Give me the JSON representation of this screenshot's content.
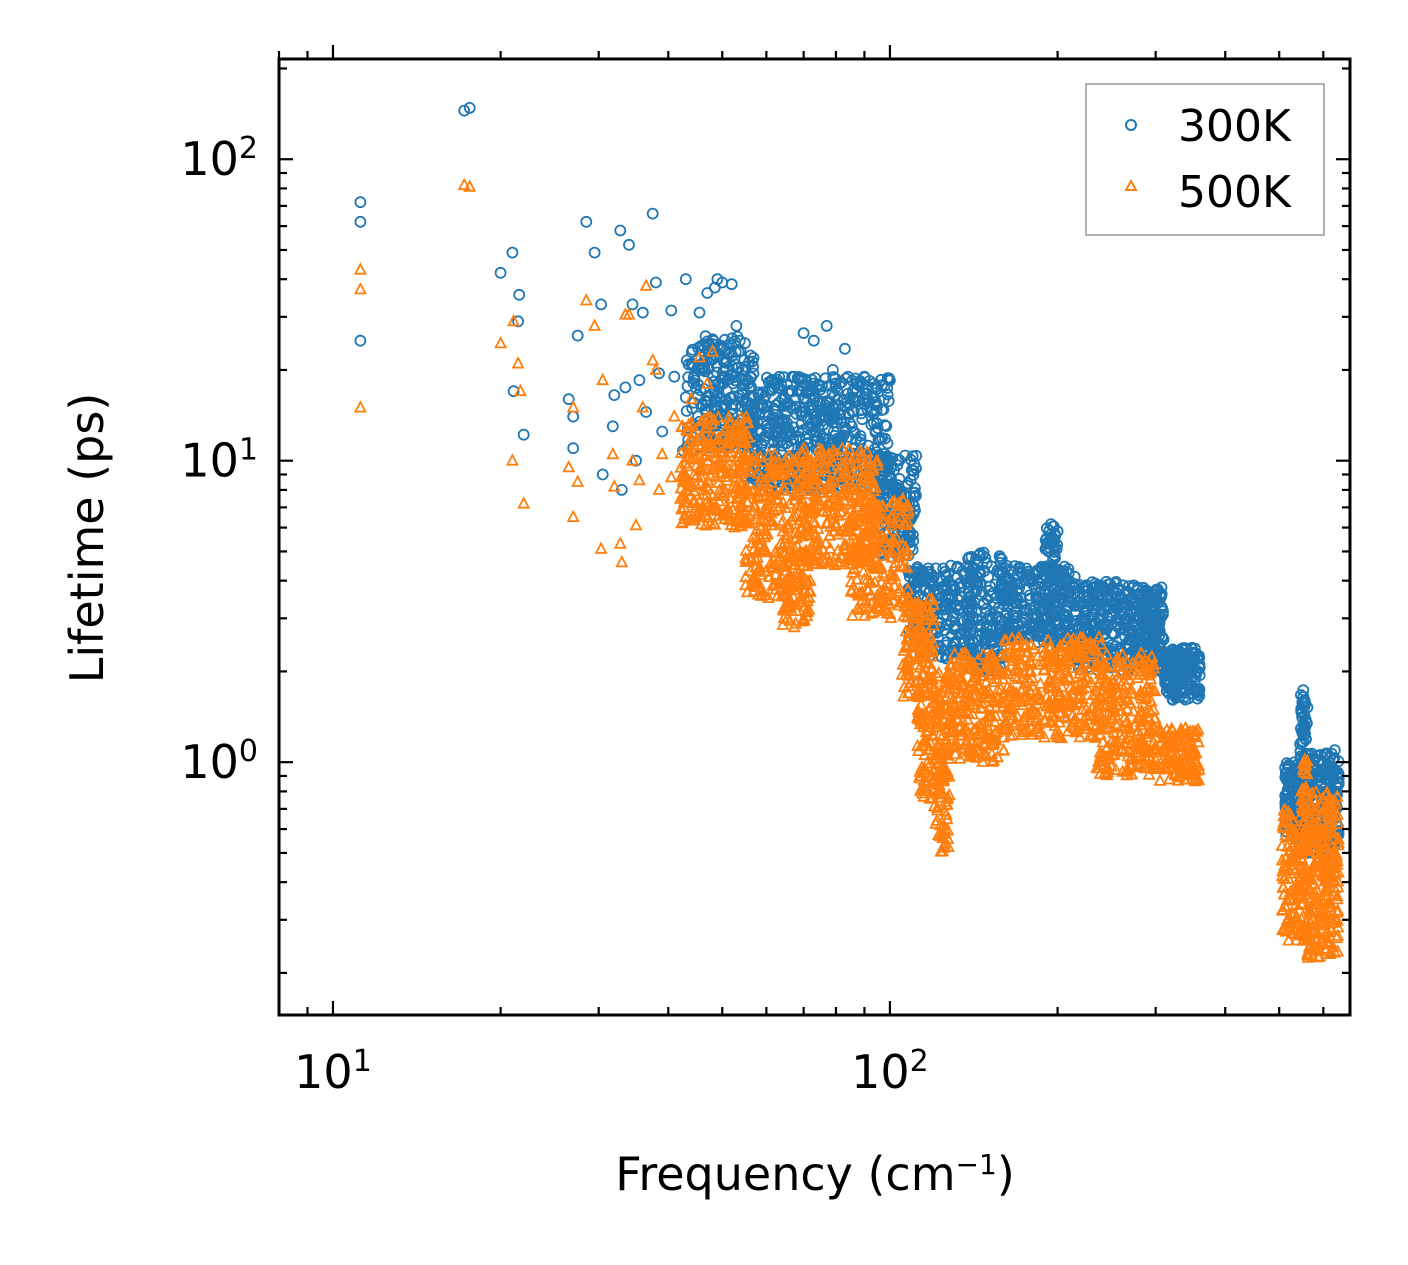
{
  "chart_data": {
    "type": "scatter",
    "title": "",
    "xlabel_base": "Frequency (cm",
    "xlabel_exp": "−1",
    "xlabel_close": ")",
    "ylabel": "Lifetime (ps)",
    "xscale": "log",
    "yscale": "log",
    "xlim": [
      8.0,
      670
    ],
    "ylim": [
      0.145,
      215
    ],
    "x_ticks": [
      {
        "value": 10,
        "base": "10",
        "exp": "1"
      },
      {
        "value": 100,
        "base": "10",
        "exp": "2"
      }
    ],
    "y_ticks": [
      {
        "value": 1,
        "base": "10",
        "exp": "0"
      },
      {
        "value": 10,
        "base": "10",
        "exp": "1"
      },
      {
        "value": 100,
        "base": "10",
        "exp": "2"
      }
    ],
    "legend_position": "top-right",
    "series": [
      {
        "name": "300K",
        "color": "#1f77b4",
        "marker": "circle",
        "points": [
          [
            11.2,
            72
          ],
          [
            11.2,
            62
          ],
          [
            11.2,
            25
          ],
          [
            17.2,
            145
          ],
          [
            17.6,
            148
          ],
          [
            20,
            42
          ],
          [
            21,
            49
          ],
          [
            21.1,
            17
          ],
          [
            21.5,
            29
          ],
          [
            21.6,
            35.5
          ],
          [
            22,
            12.2
          ],
          [
            26.5,
            16
          ],
          [
            27,
            11
          ],
          [
            27,
            14
          ],
          [
            27.5,
            26
          ],
          [
            28.5,
            62
          ],
          [
            29.5,
            49
          ],
          [
            30.3,
            33
          ],
          [
            30.5,
            9
          ],
          [
            31.8,
            13
          ],
          [
            32,
            16.5
          ],
          [
            32.8,
            58
          ],
          [
            33,
            8
          ],
          [
            33.5,
            17.5
          ],
          [
            34,
            52
          ],
          [
            34.5,
            33
          ],
          [
            35,
            10
          ],
          [
            35.5,
            18.5
          ],
          [
            36,
            31
          ],
          [
            36.5,
            14.5
          ],
          [
            37.5,
            66
          ],
          [
            38,
            39
          ],
          [
            38.5,
            19.5
          ],
          [
            39,
            12.5
          ],
          [
            40.5,
            31.5
          ],
          [
            41,
            19
          ],
          [
            42.5,
            10.8
          ],
          [
            43,
            40
          ],
          [
            44,
            21
          ],
          [
            45.5,
            31
          ],
          [
            47,
            36
          ],
          [
            48.5,
            37.5
          ],
          [
            49,
            40
          ],
          [
            50,
            39
          ],
          [
            52,
            38.5
          ],
          [
            53,
            28
          ],
          [
            70,
            26.5
          ],
          [
            73,
            25
          ],
          [
            77,
            28
          ],
          [
            79,
            20
          ],
          [
            83,
            23.5
          ],
          [
            87,
            18
          ],
          [
            90,
            19
          ]
        ],
        "clusters": [
          {
            "x_range": [
              43,
              57
            ],
            "y_range": [
              11,
              26
            ],
            "count": 260
          },
          {
            "x_range": [
              55,
              100
            ],
            "y_range": [
              8,
              19
            ],
            "count": 560
          },
          {
            "x_range": [
              95,
              112
            ],
            "y_range": [
              4.8,
              10.5
            ],
            "count": 170
          },
          {
            "x_range": [
              108,
              140
            ],
            "y_range": [
              2.2,
              4.5
            ],
            "count": 230
          },
          {
            "x_range": [
              138,
              160
            ],
            "y_range": [
              2.0,
              5.0
            ],
            "count": 160
          },
          {
            "x_range": [
              158,
              215
            ],
            "y_range": [
              2.5,
              4.5
            ],
            "count": 300
          },
          {
            "x_range": [
              190,
              200
            ],
            "y_range": [
              4.0,
              6.2
            ],
            "count": 45
          },
          {
            "x_range": [
              215,
              275
            ],
            "y_range": [
              2.0,
              4.0
            ],
            "count": 260
          },
          {
            "x_range": [
              275,
              310
            ],
            "y_range": [
              2.0,
              3.8
            ],
            "count": 200
          },
          {
            "x_range": [
              310,
              360
            ],
            "y_range": [
              1.6,
              2.4
            ],
            "count": 170
          },
          {
            "x_range": [
              510,
              555
            ],
            "y_range": [
              0.55,
              1.0
            ],
            "count": 120
          },
          {
            "x_range": [
              545,
              562
            ],
            "y_range": [
              0.7,
              1.75
            ],
            "count": 60
          },
          {
            "x_range": [
              555,
              640
            ],
            "y_range": [
              0.5,
              1.1
            ],
            "count": 230
          }
        ]
      },
      {
        "name": "500K",
        "color": "#ff7f0e",
        "marker": "triangle",
        "points": [
          [
            11.2,
            43
          ],
          [
            11.2,
            37
          ],
          [
            11.2,
            15
          ],
          [
            17.2,
            82
          ],
          [
            17.6,
            81
          ],
          [
            20,
            24.5
          ],
          [
            21,
            10
          ],
          [
            21.1,
            29
          ],
          [
            21.5,
            21
          ],
          [
            21.7,
            17
          ],
          [
            22,
            7.2
          ],
          [
            26.5,
            9.5
          ],
          [
            27,
            6.5
          ],
          [
            27.5,
            8.5
          ],
          [
            27,
            15
          ],
          [
            28.5,
            34
          ],
          [
            29.5,
            28
          ],
          [
            30.3,
            5.1
          ],
          [
            30.5,
            18.5
          ],
          [
            31.8,
            10.5
          ],
          [
            32,
            8.2
          ],
          [
            32.8,
            5.3
          ],
          [
            33,
            4.6
          ],
          [
            33.5,
            30.5
          ],
          [
            34,
            30.5
          ],
          [
            34.5,
            10
          ],
          [
            35,
            6.1
          ],
          [
            35.5,
            8.6
          ],
          [
            36,
            15
          ],
          [
            36.5,
            38
          ],
          [
            37.5,
            21.5
          ],
          [
            38,
            20
          ],
          [
            38.5,
            8
          ],
          [
            39,
            10.5
          ],
          [
            40.5,
            8.8
          ],
          [
            41,
            14
          ],
          [
            42.5,
            7.5
          ],
          [
            43,
            8
          ],
          [
            44,
            16
          ],
          [
            45.5,
            22
          ],
          [
            47,
            18
          ],
          [
            48,
            23
          ]
        ],
        "clusters": [
          {
            "x_range": [
              42,
              56
            ],
            "y_range": [
              6.0,
              14
            ],
            "count": 280
          },
          {
            "x_range": [
              55,
              68
            ],
            "y_range": [
              3.5,
              10.5
            ],
            "count": 200
          },
          {
            "x_range": [
              64,
              72
            ],
            "y_range": [
              2.8,
              5.0
            ],
            "count": 90
          },
          {
            "x_range": [
              68,
              95
            ],
            "y_range": [
              4.5,
              11
            ],
            "count": 330
          },
          {
            "x_range": [
              85,
              108
            ],
            "y_range": [
              3.0,
              7.5
            ],
            "count": 180
          },
          {
            "x_range": [
              105,
              120
            ],
            "y_range": [
              1.6,
              3.5
            ],
            "count": 130
          },
          {
            "x_range": [
              112,
              128
            ],
            "y_range": [
              0.75,
              2.0
            ],
            "count": 170
          },
          {
            "x_range": [
              120,
              128
            ],
            "y_range": [
              0.5,
              0.95
            ],
            "count": 40
          },
          {
            "x_range": [
              128,
              160
            ],
            "y_range": [
              1.0,
              2.3
            ],
            "count": 220
          },
          {
            "x_range": [
              160,
              240
            ],
            "y_range": [
              1.2,
              2.6
            ],
            "count": 340
          },
          {
            "x_range": [
              235,
              300
            ],
            "y_range": [
              0.9,
              2.3
            ],
            "count": 260
          },
          {
            "x_range": [
              300,
              360
            ],
            "y_range": [
              0.86,
              1.3
            ],
            "count": 150
          },
          {
            "x_range": [
              505,
              560
            ],
            "y_range": [
              0.25,
              0.7
            ],
            "count": 140
          },
          {
            "x_range": [
              545,
              562
            ],
            "y_range": [
              0.35,
              1.05
            ],
            "count": 50
          },
          {
            "x_range": [
              560,
              640
            ],
            "y_range": [
              0.22,
              0.8
            ],
            "count": 240
          }
        ]
      }
    ]
  }
}
